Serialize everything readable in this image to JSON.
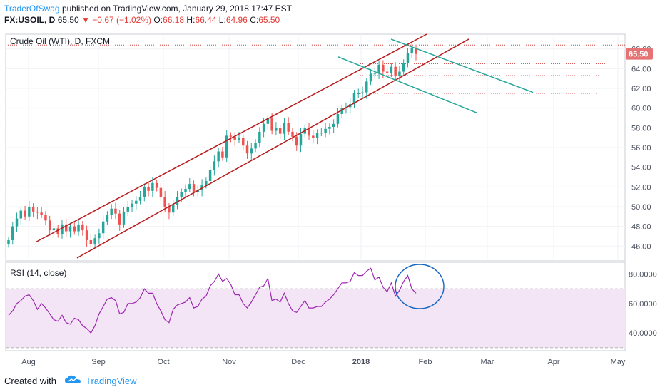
{
  "header": {
    "author": "TraderOfSwag",
    "published_text": "published on TradingView.com, January 29, 2018 17:47 EST",
    "symbol": "FX:USOIL, D",
    "last": "65.50",
    "arrow": "▼",
    "change": "−0.67 (−1.02%)",
    "o_label": "O:",
    "o_value": "66.18",
    "h_label": "H:",
    "h_value": "66.44",
    "l_label": "L:",
    "l_value": "64.96",
    "c_label": "C:",
    "c_value": "65.50"
  },
  "footer": {
    "created_with": "Created with",
    "brand": "TradingView",
    "logo_icon": "tradingview-cloud-icon"
  },
  "colors": {
    "up": "#26a69a",
    "down": "#ef5350",
    "channel": "#b71c1c",
    "trend": "#26a69a",
    "rsi": "#9c27b0",
    "rsi_band": "#f3e5f5",
    "circle": "#1565c0",
    "price_tag": "#e57373"
  },
  "chart_data": [
    {
      "type": "candlestick",
      "title": "Crude Oil (WTI), D, FXCM",
      "ylim": [
        44.5,
        67.5
      ],
      "y_ticks": [
        "66.00",
        "64.00",
        "62.00",
        "60.00",
        "58.00",
        "56.00",
        "54.00",
        "52.00",
        "50.00",
        "48.00",
        "46.00"
      ],
      "x_ticks": [
        "Aug",
        "Sep",
        "Oct",
        "Nov",
        "Dec",
        "2018",
        "Feb",
        "Mar",
        "Apr",
        "May"
      ],
      "last_price_label": "65.50",
      "closes": [
        46.6,
        48.0,
        48.8,
        49.6,
        49.0,
        50.0,
        49.5,
        49.4,
        49.2,
        48.6,
        47.6,
        47.8,
        47.2,
        48.2,
        47.5,
        48.0,
        47.5,
        48.2,
        47.6,
        46.6,
        46.2,
        46.8,
        47.3,
        48.5,
        49.2,
        49.8,
        49.3,
        48.2,
        49.5,
        50.0,
        50.3,
        50.6,
        51.0,
        52.0,
        51.6,
        52.4,
        51.9,
        51.0,
        50.0,
        49.4,
        50.2,
        51.0,
        51.5,
        51.8,
        52.3,
        51.5,
        51.7,
        52.2,
        52.6,
        53.7,
        54.6,
        55.6,
        55.0,
        57.2,
        57.1,
        56.8,
        57.0,
        56.2,
        55.4,
        55.9,
        56.5,
        57.6,
        58.4,
        59.0,
        57.7,
        58.0,
        57.4,
        58.5,
        57.6,
        57.1,
        56.2,
        57.4,
        58.0,
        57.2,
        57.0,
        57.5,
        57.5,
        57.9,
        58.1,
        58.4,
        59.4,
        60.0,
        60.1,
        60.4,
        61.5,
        61.5,
        61.6,
        62.7,
        63.5,
        63.5,
        64.4,
        63.7,
        63.6,
        64.2,
        63.3,
        63.7,
        64.6,
        65.6,
        66.1,
        65.5
      ],
      "annotations": {
        "channel_upper": {
          "from": [
            "2017-08-02",
            46.4
          ],
          "to": [
            "2018-01-29",
            67.5
          ]
        },
        "channel_lower": {
          "from": [
            "2017-08-29",
            44.8
          ],
          "to": [
            "2018-02-14",
            67.0
          ]
        },
        "trend_upper": {
          "from": [
            "2018-01-24",
            67.0
          ],
          "to": [
            "2018-03-19",
            61.6
          ]
        },
        "trend_lower": {
          "from": [
            "2017-12-21",
            65.2
          ],
          "to": [
            "2018-02-19",
            59.5
          ]
        },
        "resistance_dotted": [
          66.4,
          64.5,
          63.3,
          61.5
        ]
      }
    },
    {
      "type": "line",
      "title": "RSI (14, close)",
      "ylim": [
        28,
        88
      ],
      "y_ticks": [
        "80.0000",
        "60.0000",
        "40.0000"
      ],
      "band": [
        30,
        70
      ],
      "values": [
        52,
        55,
        60,
        62,
        65,
        66,
        62,
        56,
        60,
        57,
        53,
        49,
        48,
        52,
        47,
        46,
        50,
        49,
        45,
        43,
        40,
        45,
        53,
        58,
        63,
        64,
        62,
        53,
        54,
        60,
        60,
        61,
        64,
        70,
        67,
        67,
        60,
        55,
        49,
        47,
        56,
        59,
        60,
        61,
        64,
        57,
        58,
        63,
        65,
        72,
        75,
        80,
        75,
        77,
        73,
        66,
        66,
        60,
        57,
        61,
        66,
        71,
        72,
        77,
        62,
        63,
        61,
        67,
        60,
        55,
        54,
        58,
        62,
        57,
        57,
        58,
        58,
        61,
        63,
        66,
        70,
        74,
        74,
        75,
        81,
        79,
        79,
        82,
        84,
        76,
        78,
        71,
        68,
        74,
        65,
        69,
        75,
        79,
        70,
        67
      ],
      "annotations": {
        "circle": "ellipse around latest RSI values"
      }
    }
  ]
}
